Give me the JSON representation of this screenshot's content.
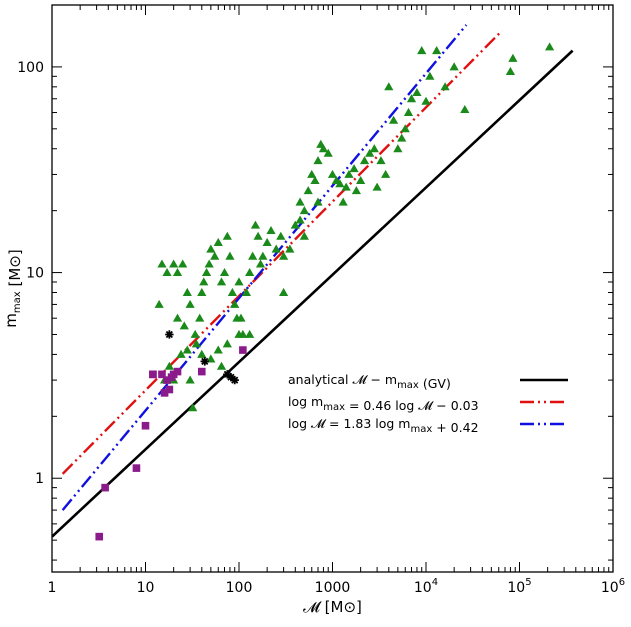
{
  "chart_data": {
    "type": "scatter",
    "x_scale": "log",
    "y_scale": "log",
    "xlim": [
      1,
      1000000
    ],
    "ylim": [
      0.35,
      200
    ],
    "xlabel": "𝓜 [M⊙]",
    "ylabel": "m_max [M⊙]",
    "x_ticks": [
      {
        "value": 1,
        "label": "1",
        "sup": ""
      },
      {
        "value": 10,
        "label": "10",
        "sup": ""
      },
      {
        "value": 100,
        "label": "100",
        "sup": ""
      },
      {
        "value": 1000,
        "label": "1000",
        "sup": ""
      },
      {
        "value": 10000,
        "label": "10",
        "sup": "4"
      },
      {
        "value": 100000,
        "label": "10",
        "sup": "5"
      },
      {
        "value": 1000000,
        "label": "10",
        "sup": "6"
      }
    ],
    "y_ticks": [
      {
        "value": 1,
        "label": "1"
      },
      {
        "value": 10,
        "label": "10"
      },
      {
        "value": 100,
        "label": "100"
      }
    ],
    "legend": {
      "placement": "right-center",
      "entries": [
        {
          "label": "analytical 𝓜 − m_max (GV)",
          "color": "#000000",
          "style": "solid"
        },
        {
          "label": "log m_max = 0.46 log 𝓜 − 0.03",
          "color": "#e01010",
          "style": "dash-dot-dot"
        },
        {
          "label": "log 𝓜 = 1.83 log m_max + 0.42",
          "color": "#1010e0",
          "style": "dash-dot-dot"
        }
      ]
    },
    "lines": [
      {
        "name": "analytical",
        "color": "#000000",
        "style": "solid",
        "points": [
          [
            1,
            0.52
          ],
          [
            370000,
            120
          ]
        ]
      },
      {
        "name": "fit1",
        "color": "#e01010",
        "style": "dash-dot-dot",
        "points": [
          [
            1.3,
            1.05
          ],
          [
            65000,
            150
          ]
        ]
      },
      {
        "name": "fit2",
        "color": "#1010e0",
        "style": "dash-dot-dot",
        "points": [
          [
            1.3,
            0.7
          ],
          [
            27000,
            160
          ]
        ]
      }
    ],
    "series": [
      {
        "marker": "triangle",
        "color": "#1a8a1a",
        "points": [
          [
            14,
            7
          ],
          [
            16,
            3
          ],
          [
            18,
            3.5
          ],
          [
            20,
            3
          ],
          [
            22,
            6
          ],
          [
            24,
            4
          ],
          [
            26,
            5.5
          ],
          [
            28,
            4.2
          ],
          [
            30,
            3
          ],
          [
            32,
            2.2
          ],
          [
            15,
            11
          ],
          [
            17,
            10
          ],
          [
            20,
            11
          ],
          [
            22,
            10
          ],
          [
            25,
            11
          ],
          [
            28,
            8
          ],
          [
            30,
            7
          ],
          [
            34,
            5
          ],
          [
            38,
            6
          ],
          [
            40,
            8
          ],
          [
            42,
            9
          ],
          [
            45,
            10
          ],
          [
            48,
            11
          ],
          [
            50,
            13
          ],
          [
            55,
            12
          ],
          [
            60,
            14
          ],
          [
            65,
            9
          ],
          [
            70,
            10
          ],
          [
            75,
            15
          ],
          [
            80,
            12
          ],
          [
            85,
            8
          ],
          [
            90,
            7
          ],
          [
            95,
            6
          ],
          [
            100,
            9
          ],
          [
            105,
            6
          ],
          [
            110,
            5
          ],
          [
            120,
            8
          ],
          [
            130,
            10
          ],
          [
            140,
            12
          ],
          [
            150,
            17
          ],
          [
            160,
            15
          ],
          [
            170,
            11
          ],
          [
            180,
            12
          ],
          [
            200,
            14
          ],
          [
            220,
            16
          ],
          [
            250,
            13
          ],
          [
            280,
            15
          ],
          [
            300,
            12
          ],
          [
            350,
            13
          ],
          [
            400,
            17
          ],
          [
            450,
            22
          ],
          [
            500,
            20
          ],
          [
            550,
            25
          ],
          [
            600,
            30
          ],
          [
            650,
            28
          ],
          [
            700,
            35
          ],
          [
            750,
            42
          ],
          [
            800,
            40
          ],
          [
            900,
            38
          ],
          [
            1000,
            30
          ],
          [
            1100,
            28
          ],
          [
            1200,
            27
          ],
          [
            1300,
            22
          ],
          [
            1500,
            30
          ],
          [
            1700,
            32
          ],
          [
            1800,
            25
          ],
          [
            2000,
            28
          ],
          [
            2200,
            35
          ],
          [
            2500,
            38
          ],
          [
            2800,
            40
          ],
          [
            3000,
            26
          ],
          [
            3300,
            35
          ],
          [
            3700,
            30
          ],
          [
            4000,
            80
          ],
          [
            4500,
            55
          ],
          [
            5000,
            40
          ],
          [
            5500,
            45
          ],
          [
            6000,
            50
          ],
          [
            6500,
            60
          ],
          [
            7000,
            70
          ],
          [
            8000,
            75
          ],
          [
            9000,
            120
          ],
          [
            10000,
            68
          ],
          [
            11000,
            90
          ],
          [
            13000,
            120
          ],
          [
            16000,
            80
          ],
          [
            20000,
            100
          ],
          [
            26000,
            62
          ],
          [
            80000,
            95
          ],
          [
            85000,
            110
          ],
          [
            210000,
            125
          ],
          [
            75,
            4.5
          ],
          [
            65,
            3.5
          ],
          [
            50,
            3.8
          ],
          [
            35,
            4.5
          ],
          [
            40,
            4
          ],
          [
            60,
            4.2
          ],
          [
            100,
            5
          ],
          [
            130,
            5
          ],
          [
            300,
            8
          ],
          [
            500,
            15
          ],
          [
            700,
            22
          ],
          [
            1400,
            26
          ],
          [
            450,
            18
          ]
        ]
      },
      {
        "marker": "square",
        "color": "#8b1a8b",
        "points": [
          [
            3.2,
            0.52
          ],
          [
            3.7,
            0.9
          ],
          [
            8,
            1.12
          ],
          [
            10,
            1.8
          ],
          [
            12,
            3.2
          ],
          [
            15,
            3.2
          ],
          [
            16,
            2.6
          ],
          [
            18,
            2.7
          ],
          [
            20,
            3.2
          ],
          [
            22,
            3.3
          ],
          [
            40,
            3.3
          ],
          [
            110,
            4.2
          ],
          [
            12,
            3.2
          ],
          [
            17,
            3.0
          ],
          [
            19,
            3.1
          ]
        ]
      },
      {
        "marker": "star",
        "color": "#000000",
        "points": [
          [
            18,
            5
          ],
          [
            43,
            3.7
          ],
          [
            75,
            3.2
          ],
          [
            82,
            3.1
          ],
          [
            90,
            3.0
          ]
        ]
      }
    ]
  }
}
